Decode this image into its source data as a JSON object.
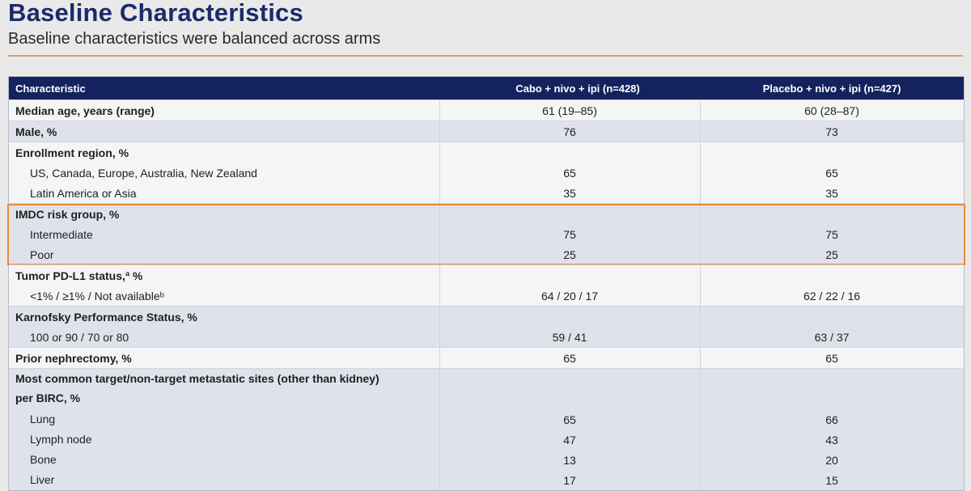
{
  "title": "Baseline Characteristics",
  "subtitle": "Baseline characteristics were balanced across arms",
  "accent": "#e58a3c",
  "header_bg": "#14235e",
  "table": {
    "headers": [
      "Characteristic",
      "Cabo + nivo + ipi (n=428)",
      "Placebo + nivo + ipi (n=427)"
    ],
    "rows": {
      "age": [
        "Median age, years (range)",
        "61 (19–85)",
        "60 (28–87)"
      ],
      "male": [
        "Male, %",
        "76",
        "73"
      ],
      "region": [
        "Enrollment region, %",
        "",
        ""
      ],
      "region_us": [
        "US, Canada, Europe, Australia, New Zealand",
        "65",
        "65"
      ],
      "region_la": [
        "Latin America or Asia",
        "35",
        "35"
      ],
      "imdc": [
        "IMDC risk group, %",
        "",
        ""
      ],
      "imdc_int": [
        "Intermediate",
        "75",
        "75"
      ],
      "imdc_poor": [
        "Poor",
        "25",
        "25"
      ],
      "pdl1": [
        "Tumor PD-L1 status,ª %",
        "",
        ""
      ],
      "pdl1_vals": [
        "<1% / ≥1% / Not availableᵇ",
        "64 / 20 / 17",
        "62 / 22 / 16"
      ],
      "kps": [
        "Karnofsky Performance Status, %",
        "",
        ""
      ],
      "kps_vals": [
        "100 or 90 / 70 or 80",
        "59 / 41",
        "63 / 37"
      ],
      "neph": [
        "Prior nephrectomy, %",
        "65",
        "65"
      ],
      "meta_1": [
        "Most common target/non-target metastatic sites (other than kidney)",
        "",
        ""
      ],
      "meta_2": [
        "per BIRC, %",
        "",
        ""
      ],
      "lung": [
        "Lung",
        "65",
        "66"
      ],
      "lymph": [
        "Lymph node",
        "47",
        "43"
      ],
      "bone": [
        "Bone",
        "13",
        "20"
      ],
      "liver": [
        "Liver",
        "17",
        "15"
      ]
    }
  }
}
